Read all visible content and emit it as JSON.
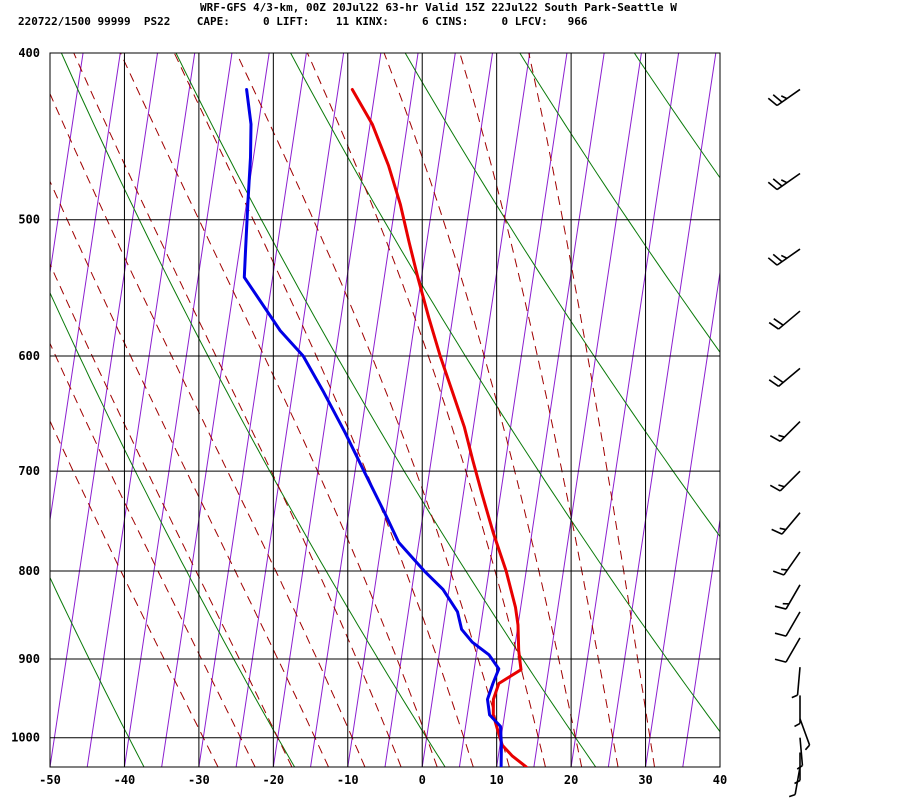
{
  "header": {
    "line1": "WRF-GFS 4/3-km, 00Z 20Jul22 63-hr Valid 15Z 22Jul22 South Park-Seattle W",
    "line2": "220722/1500 99999  PS22    CAPE:     0 LIFT:    11 KINX:     6 CINS:     0 LFCV:   966"
  },
  "chart_data": {
    "type": "line",
    "subtype": "skew-t log-p sounding",
    "x_axis": {
      "unit": "degC",
      "range": [
        -50,
        40
      ],
      "ticks": [
        "-50",
        "-40",
        "-30",
        "-20",
        "-10",
        "0",
        "10",
        "20",
        "30",
        "40"
      ]
    },
    "y_axis": {
      "unit": "hPa",
      "scale": "log-pressure",
      "range": [
        1040,
        400
      ],
      "ticks": [
        "400",
        "500",
        "600",
        "700",
        "800",
        "900",
        "1000"
      ]
    },
    "grid": true,
    "colors": {
      "temperature": "#e80000",
      "dewpoint": "#0000e6",
      "isotherm": "#8c1fd0",
      "dry_adiabat": "#0a7a0a",
      "moist_adiabat": "#a00000",
      "grid": "#000000"
    },
    "series": [
      {
        "id": "temperature",
        "points": [
          [
            1040,
            14.0
          ],
          [
            1025,
            11.9
          ],
          [
            1010,
            10.3
          ],
          [
            990,
            9.4
          ],
          [
            970,
            8.5
          ],
          [
            950,
            8.2
          ],
          [
            930,
            8.6
          ],
          [
            913,
            11.3
          ],
          [
            890,
            10.6
          ],
          [
            860,
            10.0
          ],
          [
            840,
            9.3
          ],
          [
            800,
            7.3
          ],
          [
            760,
            4.8
          ],
          [
            720,
            2.4
          ],
          [
            690,
            0.6
          ],
          [
            660,
            -1.2
          ],
          [
            630,
            -3.5
          ],
          [
            600,
            -5.9
          ],
          [
            570,
            -8.2
          ],
          [
            540,
            -10.5
          ],
          [
            515,
            -12.4
          ],
          [
            490,
            -14.3
          ],
          [
            465,
            -16.7
          ],
          [
            440,
            -19.7
          ],
          [
            420,
            -23.1
          ]
        ]
      },
      {
        "id": "dewpoint",
        "points": [
          [
            1040,
            10.6
          ],
          [
            1010,
            10.2
          ],
          [
            985,
            9.7
          ],
          [
            970,
            8.0
          ],
          [
            950,
            7.4
          ],
          [
            930,
            7.8
          ],
          [
            912,
            8.3
          ],
          [
            895,
            6.7
          ],
          [
            880,
            4.2
          ],
          [
            865,
            2.5
          ],
          [
            845,
            1.6
          ],
          [
            820,
            -0.8
          ],
          [
            800,
            -3.7
          ],
          [
            770,
            -7.7
          ],
          [
            740,
            -10.2
          ],
          [
            700,
            -13.8
          ],
          [
            665,
            -17.1
          ],
          [
            630,
            -20.8
          ],
          [
            600,
            -24.3
          ],
          [
            580,
            -27.9
          ],
          [
            540,
            -33.8
          ],
          [
            520,
            -34.2
          ],
          [
            490,
            -34.8
          ],
          [
            460,
            -35.4
          ],
          [
            440,
            -36.0
          ],
          [
            420,
            -37.3
          ]
        ]
      }
    ],
    "wind_barbs": [
      {
        "p": 420,
        "dir": 235,
        "speed": 25
      },
      {
        "p": 470,
        "dir": 235,
        "speed": 25
      },
      {
        "p": 520,
        "dir": 235,
        "speed": 25
      },
      {
        "p": 565,
        "dir": 230,
        "speed": 20
      },
      {
        "p": 610,
        "dir": 230,
        "speed": 20
      },
      {
        "p": 655,
        "dir": 225,
        "speed": 15
      },
      {
        "p": 700,
        "dir": 225,
        "speed": 15
      },
      {
        "p": 740,
        "dir": 220,
        "speed": 15
      },
      {
        "p": 780,
        "dir": 215,
        "speed": 15
      },
      {
        "p": 815,
        "dir": 210,
        "speed": 15
      },
      {
        "p": 845,
        "dir": 210,
        "speed": 10
      },
      {
        "p": 875,
        "dir": 210,
        "speed": 10
      },
      {
        "p": 910,
        "dir": 185,
        "speed": 5
      },
      {
        "p": 945,
        "dir": 180,
        "speed": 5
      },
      {
        "p": 975,
        "dir": 160,
        "speed": 5
      },
      {
        "p": 1000,
        "dir": 175,
        "speed": 5
      },
      {
        "p": 1020,
        "dir": 180,
        "speed": 5
      },
      {
        "p": 1040,
        "dir": 190,
        "speed": 5
      }
    ]
  }
}
